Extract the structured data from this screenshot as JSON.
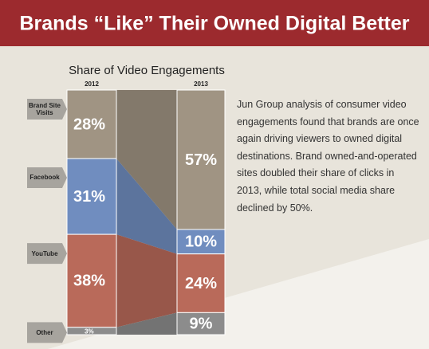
{
  "chart_data": {
    "type": "stacked-flow",
    "title": "Brands “Like” Their Owned Digital Better",
    "subtitle": "Share of Video Engagements",
    "categories": [
      "2012",
      "2013"
    ],
    "ylim": [
      0,
      100
    ],
    "series": [
      {
        "name": "Brand Site Visits",
        "color": "#a09483",
        "values": [
          28,
          57
        ],
        "value_labels": [
          "28%",
          "57%"
        ]
      },
      {
        "name": "Facebook",
        "color": "#708dbf",
        "values": [
          31,
          10
        ],
        "value_labels": [
          "31%",
          "10%"
        ]
      },
      {
        "name": "YouTube",
        "color": "#b96a5a",
        "values": [
          38,
          24
        ],
        "value_labels": [
          "38%",
          "24%"
        ]
      },
      {
        "name": "Other",
        "color": "#8c8c8c",
        "values": [
          3,
          9
        ],
        "value_labels": [
          "3%",
          "9%"
        ]
      }
    ],
    "note": "Jun Group analysis of consumer video engagements found that brands are once again driving viewers to owned digital destinations. Brand owned-and-operated sites doubled their share of clicks in 2013, while total social media share declined by 50%."
  }
}
